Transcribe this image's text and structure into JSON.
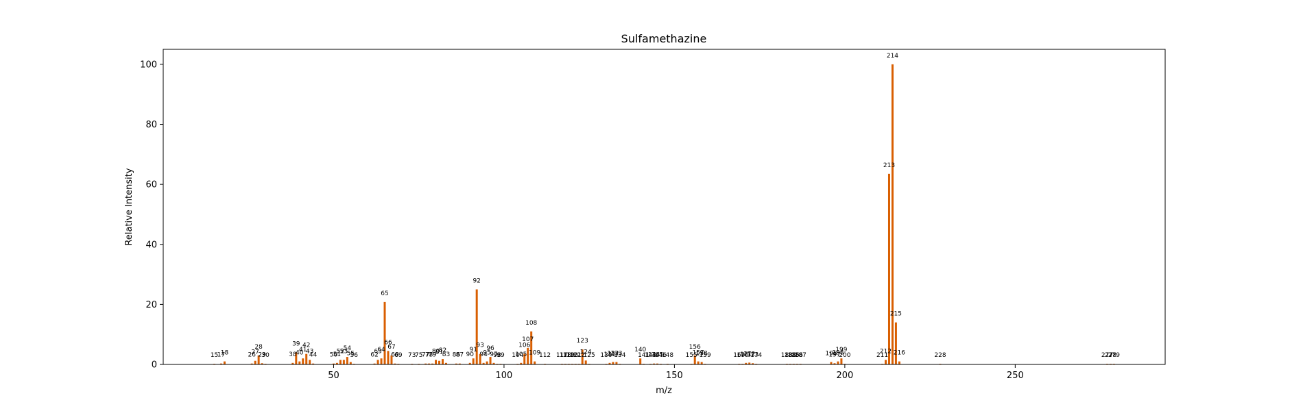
{
  "chart_data": {
    "type": "bar",
    "title": "Sulfamethazine",
    "xlabel": "m/z",
    "ylabel": "Relative Intensity",
    "xlim": [
      0,
      294
    ],
    "ylim": [
      0,
      105
    ],
    "xticks": [
      50,
      100,
      150,
      200,
      250
    ],
    "yticks": [
      0,
      20,
      40,
      60,
      80,
      100
    ],
    "grid": false,
    "bar_color": "#d95f02",
    "peaks": [
      {
        "mz": 15,
        "intensity": 0.2
      },
      {
        "mz": 17,
        "intensity": 0.3
      },
      {
        "mz": 18,
        "intensity": 1.0
      },
      {
        "mz": 26,
        "intensity": 0.3
      },
      {
        "mz": 27,
        "intensity": 1.2
      },
      {
        "mz": 28,
        "intensity": 3.0
      },
      {
        "mz": 29,
        "intensity": 0.4
      },
      {
        "mz": 30,
        "intensity": 0.2
      },
      {
        "mz": 38,
        "intensity": 0.5
      },
      {
        "mz": 39,
        "intensity": 4.0
      },
      {
        "mz": 40,
        "intensity": 1.0
      },
      {
        "mz": 41,
        "intensity": 2.0
      },
      {
        "mz": 42,
        "intensity": 3.5
      },
      {
        "mz": 43,
        "intensity": 1.5
      },
      {
        "mz": 44,
        "intensity": 0.3
      },
      {
        "mz": 50,
        "intensity": 0.3
      },
      {
        "mz": 51,
        "intensity": 0.5
      },
      {
        "mz": 52,
        "intensity": 1.5
      },
      {
        "mz": 53,
        "intensity": 1.5
      },
      {
        "mz": 54,
        "intensity": 2.5
      },
      {
        "mz": 55,
        "intensity": 0.8
      },
      {
        "mz": 56,
        "intensity": 0.2
      },
      {
        "mz": 62,
        "intensity": 0.3
      },
      {
        "mz": 63,
        "intensity": 1.5
      },
      {
        "mz": 64,
        "intensity": 2.0
      },
      {
        "mz": 65,
        "intensity": 20.8
      },
      {
        "mz": 66,
        "intensity": 4.5
      },
      {
        "mz": 67,
        "intensity": 3.0
      },
      {
        "mz": 68,
        "intensity": 0.3
      },
      {
        "mz": 69,
        "intensity": 0.2
      },
      {
        "mz": 73,
        "intensity": 0.2
      },
      {
        "mz": 75,
        "intensity": 0.2
      },
      {
        "mz": 77,
        "intensity": 0.3
      },
      {
        "mz": 78,
        "intensity": 0.3
      },
      {
        "mz": 79,
        "intensity": 0.3
      },
      {
        "mz": 80,
        "intensity": 1.5
      },
      {
        "mz": 81,
        "intensity": 1.2
      },
      {
        "mz": 82,
        "intensity": 1.8
      },
      {
        "mz": 83,
        "intensity": 0.5
      },
      {
        "mz": 86,
        "intensity": 0.3
      },
      {
        "mz": 87,
        "intensity": 0.3
      },
      {
        "mz": 90,
        "intensity": 0.5
      },
      {
        "mz": 91,
        "intensity": 2.0
      },
      {
        "mz": 92,
        "intensity": 25.0
      },
      {
        "mz": 93,
        "intensity": 3.5
      },
      {
        "mz": 94,
        "intensity": 0.5
      },
      {
        "mz": 95,
        "intensity": 1.0
      },
      {
        "mz": 96,
        "intensity": 2.5
      },
      {
        "mz": 97,
        "intensity": 0.5
      },
      {
        "mz": 98,
        "intensity": 0.2
      },
      {
        "mz": 99,
        "intensity": 0.2
      },
      {
        "mz": 104,
        "intensity": 0.2
      },
      {
        "mz": 105,
        "intensity": 0.5
      },
      {
        "mz": 106,
        "intensity": 3.5
      },
      {
        "mz": 107,
        "intensity": 5.5
      },
      {
        "mz": 108,
        "intensity": 11.0
      },
      {
        "mz": 109,
        "intensity": 1.0
      },
      {
        "mz": 112,
        "intensity": 0.2
      },
      {
        "mz": 117,
        "intensity": 0.2
      },
      {
        "mz": 118,
        "intensity": 0.2
      },
      {
        "mz": 119,
        "intensity": 0.2
      },
      {
        "mz": 120,
        "intensity": 0.2
      },
      {
        "mz": 121,
        "intensity": 0.2
      },
      {
        "mz": 122,
        "intensity": 0.2
      },
      {
        "mz": 123,
        "intensity": 5.0
      },
      {
        "mz": 124,
        "intensity": 1.3
      },
      {
        "mz": 125,
        "intensity": 0.2
      },
      {
        "mz": 130,
        "intensity": 0.2
      },
      {
        "mz": 131,
        "intensity": 0.5
      },
      {
        "mz": 132,
        "intensity": 0.8
      },
      {
        "mz": 133,
        "intensity": 0.8
      },
      {
        "mz": 134,
        "intensity": 0.2
      },
      {
        "mz": 140,
        "intensity": 2.0
      },
      {
        "mz": 141,
        "intensity": 0.2
      },
      {
        "mz": 143,
        "intensity": 0.2
      },
      {
        "mz": 144,
        "intensity": 0.3
      },
      {
        "mz": 145,
        "intensity": 0.3
      },
      {
        "mz": 146,
        "intensity": 0.2
      },
      {
        "mz": 148,
        "intensity": 0.2
      },
      {
        "mz": 155,
        "intensity": 0.2
      },
      {
        "mz": 156,
        "intensity": 3.0
      },
      {
        "mz": 157,
        "intensity": 1.0
      },
      {
        "mz": 158,
        "intensity": 0.8
      },
      {
        "mz": 159,
        "intensity": 0.2
      },
      {
        "mz": 169,
        "intensity": 0.2
      },
      {
        "mz": 170,
        "intensity": 0.2
      },
      {
        "mz": 171,
        "intensity": 0.5
      },
      {
        "mz": 172,
        "intensity": 0.6
      },
      {
        "mz": 173,
        "intensity": 0.4
      },
      {
        "mz": 174,
        "intensity": 0.2
      },
      {
        "mz": 183,
        "intensity": 0.2
      },
      {
        "mz": 184,
        "intensity": 0.2
      },
      {
        "mz": 185,
        "intensity": 0.2
      },
      {
        "mz": 186,
        "intensity": 0.2
      },
      {
        "mz": 187,
        "intensity": 0.2
      },
      {
        "mz": 196,
        "intensity": 0.8
      },
      {
        "mz": 197,
        "intensity": 0.4
      },
      {
        "mz": 198,
        "intensity": 1.0
      },
      {
        "mz": 199,
        "intensity": 2.0
      },
      {
        "mz": 200,
        "intensity": 0.2
      },
      {
        "mz": 211,
        "intensity": 0.2
      },
      {
        "mz": 212,
        "intensity": 1.5
      },
      {
        "mz": 213,
        "intensity": 63.5
      },
      {
        "mz": 214,
        "intensity": 100
      },
      {
        "mz": 215,
        "intensity": 14.0
      },
      {
        "mz": 216,
        "intensity": 1.0
      },
      {
        "mz": 228,
        "intensity": 0.2
      },
      {
        "mz": 277,
        "intensity": 0.2
      },
      {
        "mz": 278,
        "intensity": 0.2
      },
      {
        "mz": 279,
        "intensity": 0.2
      }
    ]
  }
}
